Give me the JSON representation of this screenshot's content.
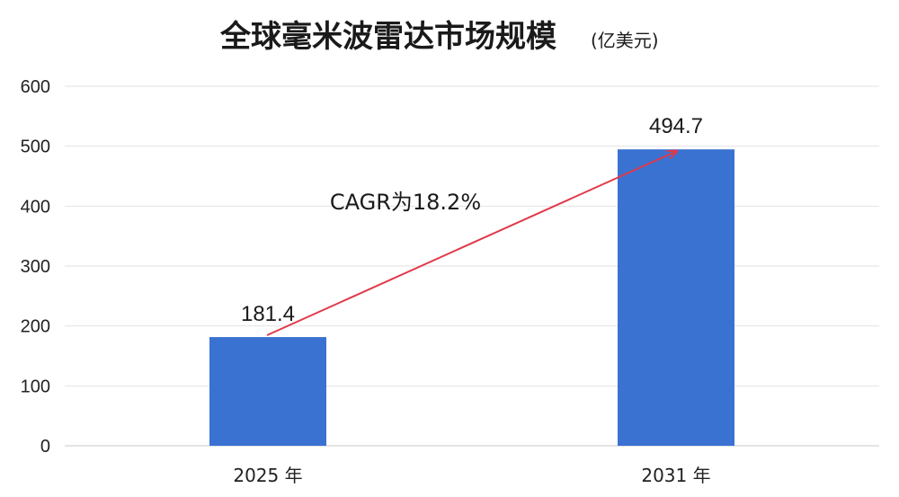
{
  "chart_data": {
    "type": "bar",
    "title": "全球毫米波雷达市场规模",
    "unit": "(亿美元)",
    "categories": [
      "2025 年",
      "2031 年"
    ],
    "values": [
      181.4,
      494.7
    ],
    "data_labels": [
      "181.4",
      "494.7"
    ],
    "ylim": [
      0,
      600
    ],
    "yticks": [
      "0",
      "100",
      "200",
      "300",
      "400",
      "500",
      "600"
    ],
    "grid": true,
    "bar_color": "#3a72d2",
    "arrow_color": "#e03a4a",
    "annotation": "CAGR为18.2%"
  }
}
